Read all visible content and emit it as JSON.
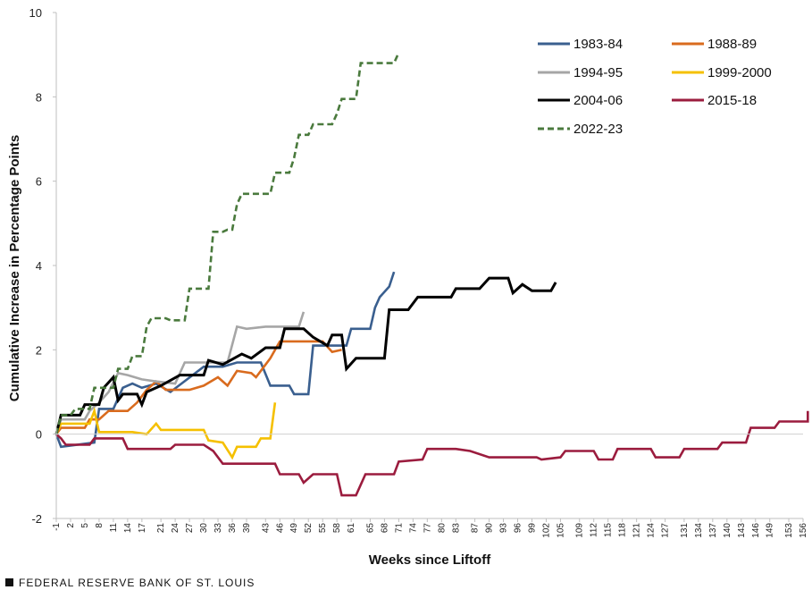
{
  "footer": {
    "source": "FEDERAL RESERVE BANK OF ST. LOUIS"
  },
  "chart_data": {
    "type": "line",
    "title": "",
    "xlabel": "Weeks since Liftoff",
    "ylabel": "Cumulative Increase in Percentage Points",
    "xlim": [
      -1,
      156
    ],
    "ylim": [
      -2,
      10
    ],
    "y_ticks": [
      -2,
      0,
      2,
      4,
      6,
      8,
      10
    ],
    "x_ticks": [
      -1,
      2,
      5,
      8,
      11,
      14,
      17,
      21,
      24,
      27,
      30,
      33,
      36,
      39,
      43,
      46,
      49,
      52,
      55,
      58,
      61,
      65,
      68,
      71,
      74,
      77,
      80,
      83,
      87,
      90,
      93,
      96,
      99,
      102,
      105,
      109,
      112,
      115,
      118,
      121,
      124,
      127,
      131,
      134,
      137,
      140,
      143,
      146,
      149,
      153,
      156
    ],
    "grid": false,
    "legend_position": "top-right",
    "series": [
      {
        "name": "1983-84",
        "color": "#3a5f8f",
        "dash": false,
        "points": [
          [
            -1,
            0
          ],
          [
            0,
            -0.3
          ],
          [
            7,
            -0.2
          ],
          [
            8,
            0.6
          ],
          [
            11,
            0.6
          ],
          [
            13,
            1.1
          ],
          [
            15,
            1.2
          ],
          [
            17,
            1.1
          ],
          [
            20,
            1.2
          ],
          [
            23,
            1.0
          ],
          [
            30,
            1.6
          ],
          [
            34,
            1.6
          ],
          [
            37,
            1.7
          ],
          [
            42,
            1.7
          ],
          [
            44,
            1.15
          ],
          [
            48,
            1.15
          ],
          [
            49,
            0.95
          ],
          [
            52,
            0.95
          ],
          [
            53,
            2.1
          ],
          [
            60,
            2.1
          ],
          [
            61,
            2.5
          ],
          [
            65,
            2.5
          ],
          [
            66,
            3.0
          ],
          [
            67,
            3.25
          ],
          [
            69,
            3.5
          ],
          [
            70,
            3.85
          ]
        ]
      },
      {
        "name": "1988-89",
        "color": "#d96b1e",
        "dash": false,
        "points": [
          [
            -1,
            0
          ],
          [
            0,
            0.15
          ],
          [
            5,
            0.15
          ],
          [
            6,
            0.35
          ],
          [
            8,
            0.35
          ],
          [
            10,
            0.55
          ],
          [
            14,
            0.55
          ],
          [
            16,
            0.75
          ],
          [
            17,
            0.9
          ],
          [
            18,
            1.05
          ],
          [
            20,
            1.25
          ],
          [
            22,
            1.05
          ],
          [
            27,
            1.05
          ],
          [
            30,
            1.15
          ],
          [
            33,
            1.35
          ],
          [
            35,
            1.15
          ],
          [
            37,
            1.5
          ],
          [
            40,
            1.45
          ],
          [
            41,
            1.35
          ],
          [
            43,
            1.65
          ],
          [
            44,
            1.8
          ],
          [
            46,
            2.2
          ],
          [
            55,
            2.2
          ],
          [
            57,
            1.95
          ],
          [
            59,
            2.0
          ]
        ]
      },
      {
        "name": "1994-95",
        "color": "#a6a6a6",
        "dash": false,
        "points": [
          [
            -1,
            0
          ],
          [
            0,
            0.35
          ],
          [
            5,
            0.35
          ],
          [
            6,
            0.55
          ],
          [
            8,
            0.75
          ],
          [
            10,
            1.0
          ],
          [
            12,
            1.45
          ],
          [
            14,
            1.4
          ],
          [
            17,
            1.3
          ],
          [
            20,
            1.25
          ],
          [
            24,
            1.2
          ],
          [
            26,
            1.7
          ],
          [
            35,
            1.7
          ],
          [
            37,
            2.55
          ],
          [
            39,
            2.5
          ],
          [
            43,
            2.55
          ],
          [
            50,
            2.55
          ],
          [
            51,
            2.9
          ]
        ]
      },
      {
        "name": "1999-2000",
        "color": "#f5c000",
        "dash": false,
        "points": [
          [
            -1,
            0
          ],
          [
            0,
            0.25
          ],
          [
            6,
            0.25
          ],
          [
            7,
            0.55
          ],
          [
            8,
            0.05
          ],
          [
            12,
            0.05
          ],
          [
            15,
            0.05
          ],
          [
            18,
            0.0
          ],
          [
            20,
            0.25
          ],
          [
            21,
            0.1
          ],
          [
            30,
            0.1
          ],
          [
            31,
            -0.15
          ],
          [
            34,
            -0.2
          ],
          [
            36,
            -0.55
          ],
          [
            37,
            -0.3
          ],
          [
            41,
            -0.3
          ],
          [
            42,
            -0.1
          ],
          [
            44,
            -0.1
          ],
          [
            45,
            0.75
          ]
        ]
      },
      {
        "name": "2004-06",
        "color": "#000000",
        "dash": false,
        "points": [
          [
            -1,
            0
          ],
          [
            0,
            0.45
          ],
          [
            4,
            0.45
          ],
          [
            5,
            0.7
          ],
          [
            8,
            0.7
          ],
          [
            9,
            1.1
          ],
          [
            11,
            1.35
          ],
          [
            12,
            0.8
          ],
          [
            13,
            0.95
          ],
          [
            16,
            0.95
          ],
          [
            17,
            0.7
          ],
          [
            18,
            1.0
          ],
          [
            21,
            1.15
          ],
          [
            25,
            1.4
          ],
          [
            30,
            1.4
          ],
          [
            31,
            1.75
          ],
          [
            34,
            1.65
          ],
          [
            38,
            1.9
          ],
          [
            40,
            1.8
          ],
          [
            43,
            2.05
          ],
          [
            46,
            2.05
          ],
          [
            47,
            2.5
          ],
          [
            51,
            2.5
          ],
          [
            53,
            2.3
          ],
          [
            56,
            2.1
          ],
          [
            57,
            2.35
          ],
          [
            59,
            2.35
          ],
          [
            60,
            1.55
          ],
          [
            62,
            1.8
          ],
          [
            68,
            1.8
          ],
          [
            69,
            2.95
          ],
          [
            73,
            2.95
          ],
          [
            75,
            3.25
          ],
          [
            82,
            3.25
          ],
          [
            83,
            3.45
          ],
          [
            88,
            3.45
          ],
          [
            90,
            3.7
          ],
          [
            94,
            3.7
          ],
          [
            95,
            3.35
          ],
          [
            97,
            3.55
          ],
          [
            99,
            3.4
          ],
          [
            103,
            3.4
          ],
          [
            104,
            3.6
          ]
        ]
      },
      {
        "name": "2015-18",
        "color": "#9b1c3e",
        "dash": false,
        "points": [
          [
            -1,
            0
          ],
          [
            0,
            -0.1
          ],
          [
            1,
            -0.25
          ],
          [
            6,
            -0.25
          ],
          [
            7,
            -0.1
          ],
          [
            13,
            -0.1
          ],
          [
            14,
            -0.35
          ],
          [
            23,
            -0.35
          ],
          [
            24,
            -0.25
          ],
          [
            30,
            -0.25
          ],
          [
            32,
            -0.4
          ],
          [
            34,
            -0.7
          ],
          [
            45,
            -0.7
          ],
          [
            46,
            -0.95
          ],
          [
            50,
            -0.95
          ],
          [
            51,
            -1.15
          ],
          [
            53,
            -0.95
          ],
          [
            58,
            -0.95
          ],
          [
            59,
            -1.45
          ],
          [
            62,
            -1.45
          ],
          [
            63,
            -1.2
          ],
          [
            64,
            -0.95
          ],
          [
            70,
            -0.95
          ],
          [
            71,
            -0.65
          ],
          [
            76,
            -0.6
          ],
          [
            77,
            -0.35
          ],
          [
            83,
            -0.35
          ],
          [
            86,
            -0.4
          ],
          [
            90,
            -0.55
          ],
          [
            100,
            -0.55
          ],
          [
            101,
            -0.6
          ],
          [
            105,
            -0.55
          ],
          [
            106,
            -0.4
          ],
          [
            112,
            -0.4
          ],
          [
            113,
            -0.6
          ],
          [
            116,
            -0.6
          ],
          [
            117,
            -0.35
          ],
          [
            124,
            -0.35
          ],
          [
            125,
            -0.55
          ],
          [
            130,
            -0.55
          ],
          [
            131,
            -0.35
          ],
          [
            138,
            -0.35
          ],
          [
            139,
            -0.2
          ],
          [
            144,
            -0.2
          ],
          [
            145,
            0.15
          ],
          [
            150,
            0.15
          ],
          [
            151,
            0.3
          ],
          [
            157,
            0.3
          ],
          [
            157,
            0.55
          ]
        ]
      },
      {
        "name": "2022-23",
        "color": "#4a7a3d",
        "dash": true,
        "points": [
          [
            -1,
            0
          ],
          [
            0,
            0.45
          ],
          [
            2,
            0.45
          ],
          [
            3,
            0.6
          ],
          [
            6,
            0.6
          ],
          [
            7,
            1.1
          ],
          [
            11,
            1.1
          ],
          [
            12,
            1.55
          ],
          [
            14,
            1.55
          ],
          [
            15,
            1.85
          ],
          [
            17,
            1.85
          ],
          [
            18,
            2.55
          ],
          [
            19,
            2.75
          ],
          [
            22,
            2.75
          ],
          [
            23,
            2.7
          ],
          [
            26,
            2.7
          ],
          [
            27,
            3.45
          ],
          [
            31,
            3.45
          ],
          [
            32,
            4.8
          ],
          [
            34,
            4.8
          ],
          [
            35,
            4.85
          ],
          [
            36,
            4.85
          ],
          [
            37,
            5.45
          ],
          [
            38,
            5.7
          ],
          [
            44,
            5.7
          ],
          [
            45,
            6.2
          ],
          [
            48,
            6.2
          ],
          [
            49,
            6.55
          ],
          [
            50,
            7.1
          ],
          [
            52,
            7.1
          ],
          [
            53,
            7.35
          ],
          [
            57,
            7.35
          ],
          [
            58,
            7.6
          ],
          [
            59,
            7.95
          ],
          [
            62,
            7.95
          ],
          [
            63,
            8.8
          ],
          [
            70,
            8.8
          ],
          [
            71,
            9.05
          ]
        ]
      }
    ]
  }
}
